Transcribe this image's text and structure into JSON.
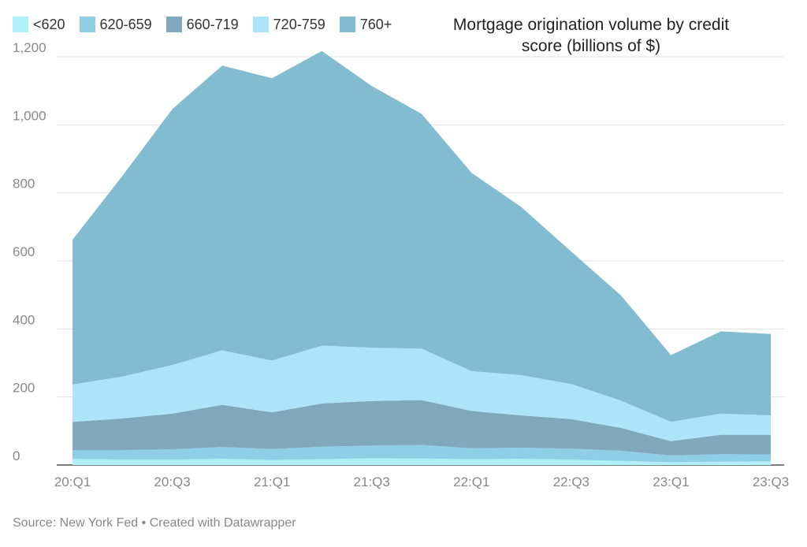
{
  "chart_data": {
    "type": "area",
    "stacked": true,
    "title": "Mortgage origination volume by credit score (billions of $)",
    "xlabel": "",
    "ylabel": "",
    "ylim": [
      0,
      1200
    ],
    "y_ticks": [
      0,
      200,
      400,
      600,
      800,
      1000,
      1200
    ],
    "y_tick_labels": [
      "0",
      "200",
      "400",
      "600",
      "800",
      "1,000",
      "1,200"
    ],
    "x_tick_labels": [
      "20:Q1",
      "20:Q3",
      "21:Q1",
      "21:Q3",
      "22:Q1",
      "22:Q3",
      "23:Q1",
      "23:Q3"
    ],
    "categories": [
      "20:Q1",
      "20:Q2",
      "20:Q3",
      "20:Q4",
      "21:Q1",
      "21:Q2",
      "21:Q3",
      "21:Q4",
      "22:Q1",
      "22:Q2",
      "22:Q3",
      "22:Q4",
      "23:Q1",
      "23:Q2",
      "23:Q3"
    ],
    "grid": true,
    "legend_position": "top-left",
    "series": [
      {
        "name": "<620",
        "color": "#b0f0f8",
        "values": [
          18,
          16,
          16,
          18,
          15,
          17,
          20,
          19,
          17,
          18,
          16,
          12,
          8,
          10,
          11
        ]
      },
      {
        "name": "620-659",
        "color": "#8ecfe6",
        "values": [
          26,
          28,
          30,
          35,
          32,
          37,
          37,
          40,
          32,
          33,
          32,
          30,
          20,
          22,
          20
        ]
      },
      {
        "name": "660-719",
        "color": "#7fa8bd",
        "values": [
          83,
          93,
          105,
          124,
          108,
          127,
          131,
          132,
          110,
          95,
          87,
          67,
          42,
          57,
          58
        ]
      },
      {
        "name": "720-759",
        "color": "#aee4fa",
        "values": [
          110,
          123,
          143,
          160,
          152,
          170,
          157,
          151,
          117,
          118,
          103,
          80,
          57,
          62,
          57
        ]
      },
      {
        "name": "760+",
        "color": "#82bcd1",
        "values": [
          425,
          590,
          752,
          837,
          830,
          866,
          769,
          690,
          583,
          494,
          389,
          309,
          196,
          242,
          239
        ]
      }
    ],
    "source": "Source: New York Fed • Created with Datawrapper"
  }
}
